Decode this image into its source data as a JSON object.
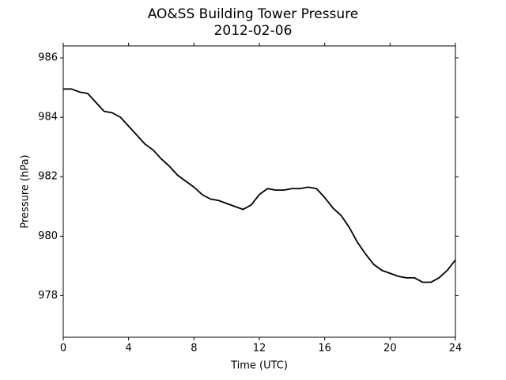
{
  "chart_data": {
    "type": "line",
    "title": "AO&SS Building Tower Pressure",
    "subtitle": "2012-02-06",
    "xlabel": "Time (UTC)",
    "ylabel": "Pressure (hPa)",
    "x": [
      0,
      0.5,
      1,
      1.5,
      2,
      2.5,
      3,
      3.5,
      4,
      4.5,
      5,
      5.5,
      6,
      6.5,
      7,
      7.5,
      8,
      8.5,
      9,
      9.5,
      10,
      10.5,
      11,
      11.5,
      12,
      12.5,
      13,
      13.5,
      14,
      14.5,
      15,
      15.5,
      16,
      16.5,
      17,
      17.5,
      18,
      18.5,
      19,
      19.5,
      20,
      20.5,
      21,
      21.5,
      22,
      22.5,
      23,
      23.5,
      24
    ],
    "series": [
      {
        "name": "Pressure",
        "color": "#000000",
        "values": [
          984.95,
          984.95,
          984.85,
          984.8,
          984.5,
          984.2,
          984.15,
          984.0,
          983.7,
          983.4,
          983.1,
          982.9,
          982.6,
          982.35,
          982.05,
          981.85,
          981.65,
          981.4,
          981.25,
          981.2,
          981.1,
          981.0,
          980.9,
          981.05,
          981.4,
          981.6,
          981.55,
          981.55,
          981.6,
          981.6,
          981.65,
          981.6,
          981.3,
          980.95,
          980.7,
          980.3,
          979.8,
          979.4,
          979.05,
          978.85,
          978.75,
          978.65,
          978.6,
          978.6,
          978.45,
          978.45,
          978.6,
          978.85,
          979.2
        ]
      }
    ],
    "xlim": [
      0,
      24
    ],
    "xticks": [
      0,
      4,
      8,
      12,
      16,
      20,
      24
    ],
    "ylim": [
      976.6,
      986.4
    ],
    "yticks": [
      978,
      980,
      982,
      984,
      986
    ],
    "grid": false
  }
}
